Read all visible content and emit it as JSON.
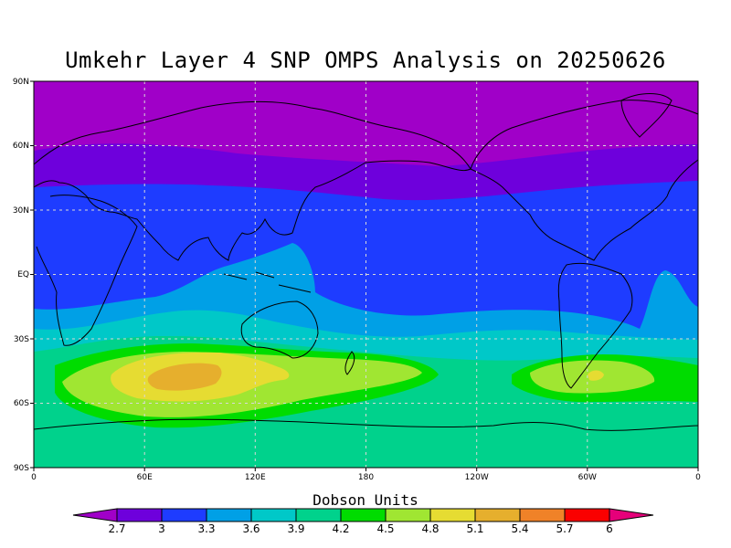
{
  "title": "Umkehr Layer 4 SNP OMPS Analysis on 20250626",
  "map": {
    "lat_labels": [
      "90N",
      "60N",
      "30N",
      "EQ",
      "30S",
      "60S",
      "90S"
    ],
    "lon_labels": [
      "0",
      "60E",
      "120E",
      "180",
      "120W",
      "60W",
      "0"
    ],
    "grid": true
  },
  "colorbar": {
    "title": "Dobson Units",
    "tick_labels": [
      "2.7",
      "3",
      "3.3",
      "3.6",
      "3.9",
      "4.2",
      "4.5",
      "4.8",
      "5.1",
      "5.4",
      "5.7",
      "6"
    ],
    "colors": [
      "#a000c8",
      "#6e00dc",
      "#1e3cff",
      "#00a0e6",
      "#00c8c8",
      "#00d28c",
      "#00dc00",
      "#a0e632",
      "#e6dc32",
      "#e6af2d",
      "#f08228",
      "#fa0000",
      "#e6007a"
    ]
  }
}
